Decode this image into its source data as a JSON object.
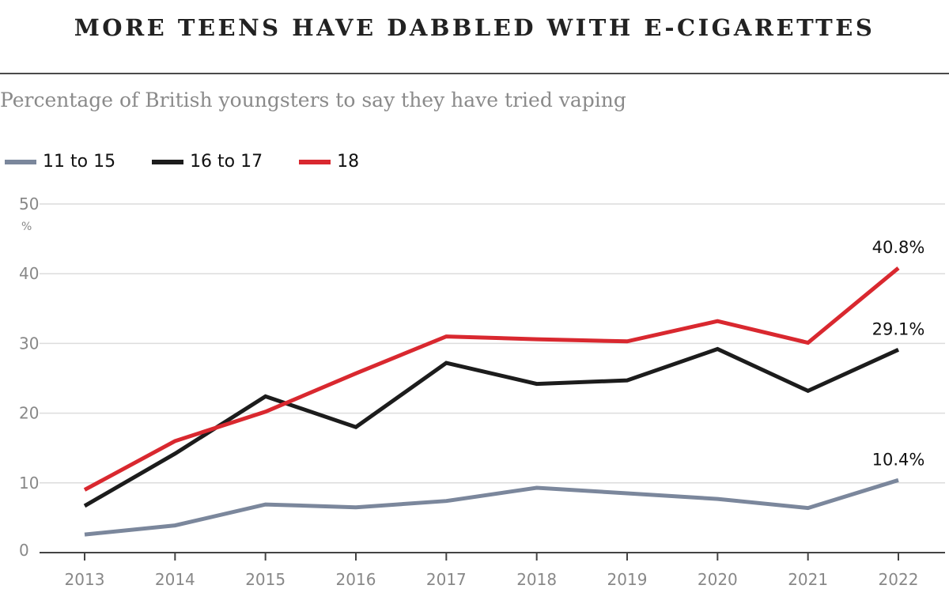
{
  "title": "MORE TEENS HAVE DABBLED WITH E-CIGARETTES",
  "subtitle": "Percentage of British youngsters to say they have tried vaping",
  "chart_data": {
    "type": "line",
    "title": "MORE TEENS HAVE DABBLED WITH E-CIGARETTES",
    "subtitle": "Percentage of British youngsters to say they have tried vaping",
    "x": [
      2013,
      2014,
      2015,
      2016,
      2017,
      2018,
      2019,
      2020,
      2021,
      2022
    ],
    "x_tick_labels": [
      "2013",
      "2014",
      "2015",
      "2016",
      "2017",
      "2018",
      "2019",
      "2020",
      "2021",
      "2022"
    ],
    "ylim": [
      0,
      50
    ],
    "yticks": [
      0,
      10,
      20,
      30,
      40,
      50
    ],
    "y_tick_labels": [
      "0",
      "10",
      "20",
      "30",
      "40",
      "50"
    ],
    "y_unit": "%",
    "grid": true,
    "legend_position": "top-left",
    "series": [
      {
        "name": "11 to 15",
        "color": "#7b879c",
        "values": [
          2.6,
          3.9,
          6.9,
          6.5,
          7.4,
          9.3,
          8.5,
          7.7,
          6.4,
          10.4
        ],
        "end_label": "10.4%"
      },
      {
        "name": "16 to 17",
        "color": "#1c1c1c",
        "values": [
          6.7,
          14.2,
          22.4,
          18.0,
          27.2,
          24.2,
          24.7,
          29.2,
          23.2,
          29.1
        ],
        "end_label": "29.1%"
      },
      {
        "name": "18",
        "color": "#d9282f",
        "values": [
          9.0,
          16.0,
          20.2,
          25.7,
          31.0,
          30.6,
          30.3,
          33.2,
          30.1,
          40.8
        ],
        "end_label": "40.8%"
      }
    ]
  }
}
